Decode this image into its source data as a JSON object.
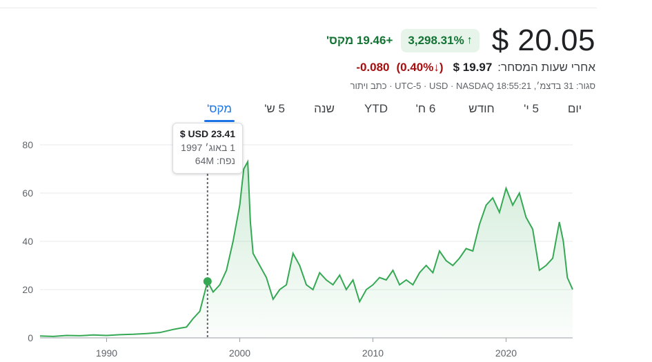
{
  "quote": {
    "price": "$ 20.05",
    "change_pct": "3,298.31%",
    "change_abs": "+19.46",
    "period_label": "מקס'",
    "up_arrow_icon": "arrow-up-icon"
  },
  "after_hours": {
    "label": "אחרי שעות המסחר:",
    "price": "$ 19.97",
    "change_pct": "(0.40%",
    "change_abs": "-0.080",
    "down_arrow_icon": "arrow-down-icon"
  },
  "meta": {
    "text": "סגור: 31 בדצמ׳, 18:55:21 UTC-5 · USD · NASDAQ · כתב ויתור"
  },
  "tabs": [
    {
      "label": "יום"
    },
    {
      "label": "5 י'"
    },
    {
      "label": "חודש"
    },
    {
      "label": "6 ח'"
    },
    {
      "label": "YTD"
    },
    {
      "label": "שנה"
    },
    {
      "label": "5 ש'"
    },
    {
      "label": "מקס'",
      "active": true
    }
  ],
  "tooltip": {
    "price": "$ USD 23.41",
    "date": "1 באוג׳ 1997",
    "volume_label": "נפח:",
    "volume_value": "64M"
  },
  "colors": {
    "line": "#34a853",
    "positive": "#137333",
    "negative": "#a50e0e",
    "accent": "#1a73e8"
  },
  "chart_data": {
    "type": "line",
    "title": "",
    "xlabel": "",
    "ylabel": "",
    "xlim": [
      1985,
      2025
    ],
    "ylim": [
      0,
      80
    ],
    "x_ticks": [
      1990,
      2000,
      2010,
      2020
    ],
    "y_ticks": [
      0,
      20,
      40,
      60,
      80
    ],
    "grid": true,
    "highlight": {
      "x": 1997.58,
      "y": 23.41
    },
    "series": [
      {
        "x": [
          1985,
          1986,
          1987,
          1988,
          1989,
          1990,
          1991,
          1992,
          1993,
          1994,
          1995,
          1995.5,
          1996,
          1996.5,
          1997,
          1997.58,
          1998,
          1998.5,
          1999,
          1999.5,
          2000,
          2000.3,
          2000.6,
          2000.8,
          2001,
          2001.5,
          2002,
          2002.5,
          2003,
          2003.5,
          2004,
          2004.5,
          2005,
          2005.5,
          2006,
          2006.5,
          2007,
          2007.5,
          2008,
          2008.5,
          2009,
          2009.5,
          2010,
          2010.5,
          2011,
          2011.5,
          2012,
          2012.5,
          2013,
          2013.5,
          2014,
          2014.5,
          2015,
          2015.5,
          2016,
          2016.5,
          2017,
          2017.5,
          2018,
          2018.5,
          2019,
          2019.5,
          2020,
          2020.5,
          2021,
          2021.5,
          2022,
          2022.5,
          2023,
          2023.5,
          2024,
          2024.3,
          2024.6,
          2025
        ],
        "y": [
          0.8,
          0.6,
          1.0,
          0.9,
          1.2,
          1.0,
          1.3,
          1.5,
          1.8,
          2.2,
          3.5,
          4.0,
          4.5,
          8.0,
          11.0,
          23.41,
          19.0,
          22.0,
          28.0,
          40.0,
          55.0,
          70.0,
          73.0,
          48.0,
          35.0,
          30.0,
          25.0,
          16.0,
          20.0,
          22.0,
          35.0,
          30.0,
          22.0,
          20.0,
          27.0,
          24.0,
          22.0,
          26.0,
          20.0,
          24.0,
          15.0,
          20.0,
          22.0,
          25.0,
          24.0,
          28.0,
          22.0,
          24.0,
          22.0,
          27.0,
          30.0,
          27.0,
          36.0,
          32.0,
          30.0,
          33.0,
          37.0,
          36.0,
          47.0,
          55.0,
          58.0,
          52.0,
          62.0,
          55.0,
          60.0,
          50.0,
          45.0,
          28.0,
          30.0,
          33.0,
          48.0,
          40.0,
          25.0,
          20.05
        ]
      }
    ]
  }
}
